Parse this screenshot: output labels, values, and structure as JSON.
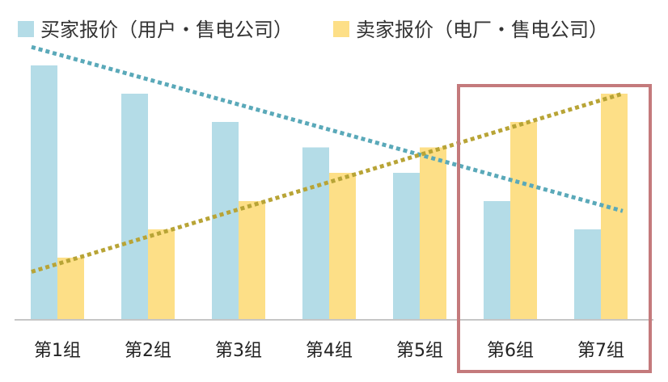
{
  "chart_data": {
    "type": "bar",
    "title": "",
    "xlabel": "",
    "ylabel": "",
    "categories": [
      "第1组",
      "第2组",
      "第3组",
      "第4组",
      "第5组",
      "第6组",
      "第7组"
    ],
    "ylim": [
      0,
      100
    ],
    "grid": false,
    "legend_position": "top",
    "series": [
      {
        "name": "买家报价（用户・售电公司）",
        "color": "#b4dce7",
        "values": [
          90,
          80,
          70,
          61,
          52,
          42,
          32
        ],
        "trendline": {
          "color": "#5aa9b9",
          "start": 96.5,
          "end": 38.5
        }
      },
      {
        "name": "卖家报价（电厂・售电公司）",
        "color": "#fddf87",
        "values": [
          22,
          32,
          42,
          52,
          61,
          70,
          80
        ],
        "trendline": {
          "color": "#b8a436",
          "start": 17,
          "end": 80
        }
      }
    ],
    "highlight": {
      "categories": [
        "第6组",
        "第7组"
      ],
      "color": "#c47a7c"
    }
  }
}
